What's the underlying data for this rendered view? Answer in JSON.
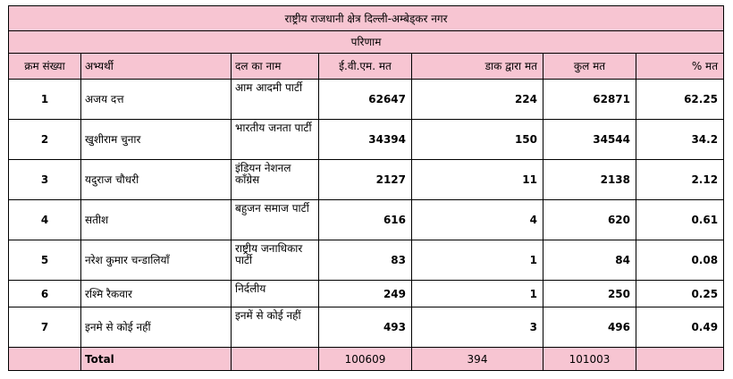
{
  "title": "राष्ट्रीय राजधानी क्षेत्र दिल्ली-अम्बेड्कर नगर",
  "subtitle": "परिणाम",
  "headers": [
    "क्रम संख्या",
    "अभ्यर्थी",
    "दल का नाम",
    "ई.वी.एम. मत",
    "डाक द्वारा मत",
    "कुल मत",
    "% मत"
  ],
  "rows": [
    {
      "sn": "1",
      "candidate": "अजय दत्त",
      "party": "आम आदमी पार्टी",
      "evm": "62647",
      "postal": "224",
      "total": "62871",
      "pct": "62.25"
    },
    {
      "sn": "2",
      "candidate": "खुशीराम चुनार",
      "party": "भारतीय जनता पार्टी",
      "evm": "34394",
      "postal": "150",
      "total": "34544",
      "pct": "34.2"
    },
    {
      "sn": "3",
      "candidate": "यदुराज चौधरी",
      "party": "इंडियन नेशनल कॉंग्रेस",
      "evm": "2127",
      "postal": "11",
      "total": "2138",
      "pct": "2.12"
    },
    {
      "sn": "4",
      "candidate": "सतीश",
      "party": "बहुजन समाज पार्टी",
      "evm": "616",
      "postal": "4",
      "total": "620",
      "pct": "0.61"
    },
    {
      "sn": "5",
      "candidate": "नरेश कुमार चन्डालियाँ",
      "party": "राष्ट्रीय जनाधिकार पार्टी",
      "evm": "83",
      "postal": "1",
      "total": "84",
      "pct": "0.08"
    },
    {
      "sn": "6",
      "candidate": "रश्मि रैकवार",
      "party": "निर्दलीय",
      "evm": "249",
      "postal": "1",
      "total": "250",
      "pct": "0.25"
    },
    {
      "sn": "7",
      "candidate": "इनमे से कोई नहीं",
      "party": "इनमें से कोई नहीं",
      "evm": "493",
      "postal": "3",
      "total": "496",
      "pct": "0.49"
    }
  ],
  "total": {
    "label": "Total",
    "evm": "100609",
    "postal": "394",
    "total": "101003"
  }
}
